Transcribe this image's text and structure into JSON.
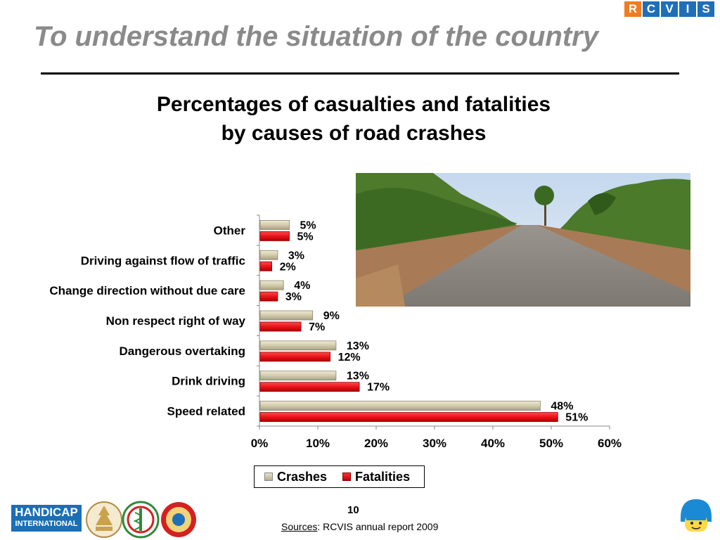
{
  "slide": {
    "title": "To understand the situation of the country",
    "page_number": "10",
    "sources_label": "Sources",
    "sources_text": ": RCVIS annual report 2009"
  },
  "logos": {
    "rcvis_letters": [
      "R",
      "C",
      "V",
      "I",
      "S"
    ],
    "rcvis_colors": [
      "#f07c1f",
      "#1f6fb7",
      "#1f6fb7",
      "#1f6fb7",
      "#1f6fb7"
    ],
    "handicap_line1": "HANDICAP",
    "handicap_line2": "INTERNATIONAL"
  },
  "chart_data": {
    "type": "bar",
    "orientation": "horizontal",
    "title_line1": "Percentages of casualties and fatalities",
    "title_line2": "by causes of road crashes",
    "categories": [
      "Other",
      "Driving against flow of traffic",
      "Change direction without due care",
      "Non respect right of way",
      "Dangerous overtaking",
      "Drink driving",
      "Speed related"
    ],
    "series": [
      {
        "name": "Crashes",
        "values": [
          5,
          3,
          4,
          9,
          13,
          13,
          48
        ],
        "labels": [
          "5%",
          "3%",
          "4%",
          "9%",
          "13%",
          "13%",
          "48%"
        ],
        "color": "#cfc8a8"
      },
      {
        "name": "Fatalities",
        "values": [
          5,
          2,
          3,
          7,
          12,
          17,
          51
        ],
        "labels": [
          "5%",
          "2%",
          "3%",
          "7%",
          "12%",
          "17%",
          "51%"
        ],
        "color": "#e8141a"
      }
    ],
    "xlim": [
      0,
      60
    ],
    "xticks": [
      "0%",
      "10%",
      "20%",
      "30%",
      "40%",
      "50%",
      "60%"
    ],
    "grid": false,
    "legend": "bottom"
  }
}
